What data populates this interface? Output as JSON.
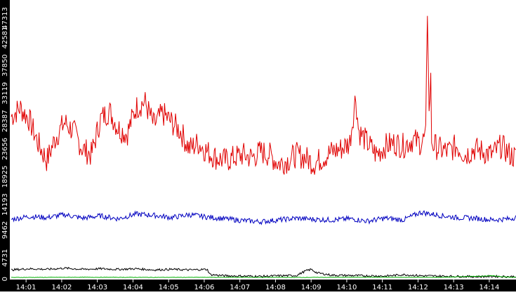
{
  "chart_data": {
    "type": "line",
    "title": "",
    "xlabel": "",
    "ylabel": "",
    "ylim": [
      0,
      47313
    ],
    "y_ticks": [
      "0",
      "4731",
      "9462",
      "14193",
      "18925",
      "23656",
      "28387",
      "33119",
      "37850",
      "42581",
      "47313"
    ],
    "x_ticks": [
      "14:01",
      "14:02",
      "14:03",
      "14:04",
      "14:05",
      "14:06",
      "14:07",
      "14:08",
      "14:09",
      "14:10",
      "14:11",
      "14:12",
      "14:13",
      "14:14"
    ],
    "x_range": [
      "14:00:35",
      "14:14:45"
    ],
    "grid": false,
    "legend": "none",
    "series": [
      {
        "color": "#e00000",
        "x": [
          "14:00:35",
          "14:00:50",
          "14:01:05",
          "14:01:20",
          "14:01:35",
          "14:01:50",
          "14:02:05",
          "14:02:20",
          "14:02:35",
          "14:02:50",
          "14:03:05",
          "14:03:20",
          "14:03:35",
          "14:03:50",
          "14:04:05",
          "14:04:20",
          "14:04:35",
          "14:04:50",
          "14:05:05",
          "14:05:20",
          "14:05:35",
          "14:05:50",
          "14:06:05",
          "14:06:20",
          "14:06:35",
          "14:06:50",
          "14:07:05",
          "14:07:20",
          "14:07:35",
          "14:07:50",
          "14:08:05",
          "14:08:20",
          "14:08:35",
          "14:08:50",
          "14:09:05",
          "14:09:20",
          "14:09:35",
          "14:09:50",
          "14:10:05",
          "14:10:15",
          "14:10:20",
          "14:10:35",
          "14:10:50",
          "14:11:05",
          "14:11:20",
          "14:11:35",
          "14:11:50",
          "14:12:05",
          "14:12:13",
          "14:12:16",
          "14:12:19",
          "14:12:21",
          "14:12:23",
          "14:12:35",
          "14:12:50",
          "14:13:05",
          "14:13:20",
          "14:13:35",
          "14:13:50",
          "14:14:05",
          "14:14:20",
          "14:14:35",
          "14:14:45"
        ],
        "values": [
          27500,
          29000,
          27000,
          23000,
          20000,
          24000,
          26500,
          25000,
          22000,
          21000,
          27000,
          28500,
          25500,
          24500,
          29000,
          30000,
          26000,
          28000,
          26500,
          25000,
          22000,
          23000,
          21500,
          20500,
          20000,
          20500,
          21000,
          20500,
          21500,
          21000,
          19500,
          20000,
          21000,
          20500,
          19500,
          20500,
          21500,
          22000,
          23000,
          31000,
          25000,
          23000,
          21000,
          22500,
          23000,
          22500,
          23500,
          23000,
          24000,
          47313,
          25000,
          37000,
          23000,
          22000,
          21500,
          22500,
          21000,
          22000,
          21500,
          21000,
          22500,
          21000,
          20500
        ]
      },
      {
        "color": "#0000c0",
        "x": [
          "14:00:35",
          "14:01:05",
          "14:01:35",
          "14:02:05",
          "14:02:35",
          "14:03:05",
          "14:03:35",
          "14:04:05",
          "14:04:35",
          "14:05:05",
          "14:05:35",
          "14:06:05",
          "14:06:35",
          "14:07:05",
          "14:07:35",
          "14:08:05",
          "14:08:35",
          "14:09:05",
          "14:09:35",
          "14:10:05",
          "14:10:35",
          "14:11:05",
          "14:11:35",
          "14:12:05",
          "14:12:35",
          "14:13:05",
          "14:13:35",
          "14:14:05",
          "14:14:35",
          "14:14:45"
        ],
        "values": [
          10000,
          10500,
          10300,
          10800,
          10200,
          10600,
          10100,
          10900,
          10700,
          10300,
          10800,
          10400,
          10100,
          9800,
          9600,
          9900,
          10200,
          10000,
          9900,
          10100,
          9700,
          10200,
          9900,
          11200,
          10700,
          10300,
          10200,
          9900,
          10100,
          10400
        ]
      },
      {
        "color": "#000000",
        "x": [
          "14:00:35",
          "14:01:05",
          "14:01:35",
          "14:02:05",
          "14:02:35",
          "14:03:05",
          "14:03:35",
          "14:04:05",
          "14:04:35",
          "14:05:05",
          "14:05:35",
          "14:06:05",
          "14:06:10",
          "14:06:35",
          "14:07:05",
          "14:07:35",
          "14:08:05",
          "14:08:35",
          "14:08:50",
          "14:09:00",
          "14:09:10",
          "14:09:35",
          "14:10:05",
          "14:10:35",
          "14:11:05",
          "14:11:35",
          "14:12:05",
          "14:12:35",
          "14:13:05",
          "14:13:35",
          "14:14:05",
          "14:14:35",
          "14:14:45"
        ],
        "values": [
          1400,
          1600,
          1500,
          1700,
          1500,
          1600,
          1500,
          1600,
          1400,
          1500,
          1400,
          1500,
          600,
          400,
          350,
          300,
          400,
          450,
          1200,
          1500,
          900,
          500,
          450,
          400,
          350,
          600,
          400,
          350,
          300,
          250,
          300,
          250,
          300
        ]
      },
      {
        "color": "#00b000",
        "x": [
          "14:00:35",
          "14:02:35",
          "14:04:35",
          "14:06:35",
          "14:08:35",
          "14:10:35",
          "14:12:35",
          "14:14:05",
          "14:14:35",
          "14:14:45"
        ],
        "values": [
          120,
          150,
          130,
          140,
          120,
          160,
          130,
          400,
          150,
          140
        ]
      }
    ]
  }
}
